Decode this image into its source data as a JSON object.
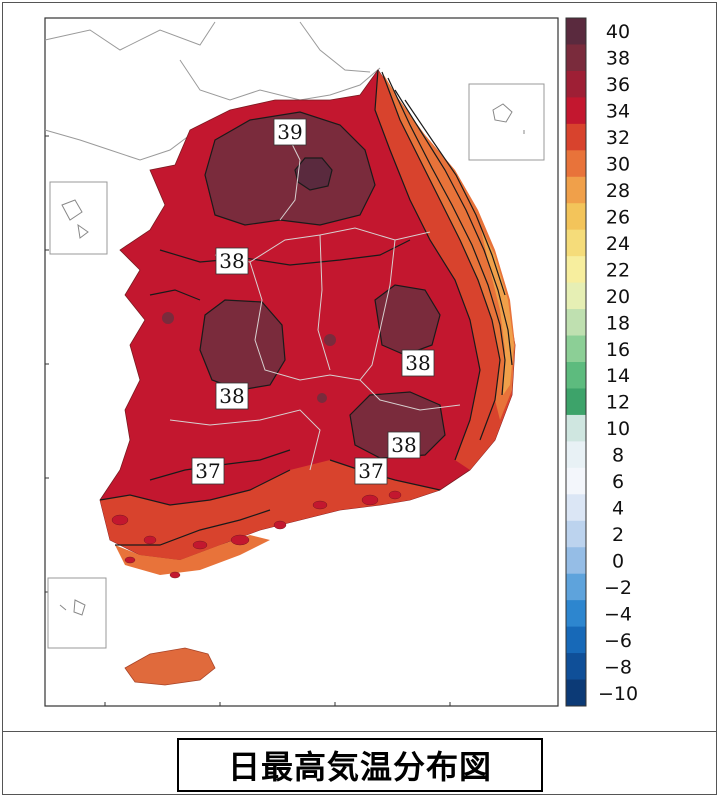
{
  "caption": "日最高気温分布図",
  "colorbar": {
    "labels": [
      "40",
      "38",
      "36",
      "34",
      "32",
      "30",
      "28",
      "26",
      "24",
      "22",
      "20",
      "18",
      "16",
      "14",
      "12",
      "10",
      "8",
      "6",
      "4",
      "2",
      "0",
      "−2",
      "−4",
      "−6",
      "−8",
      "−10"
    ],
    "colors": [
      "#5a2a3e",
      "#7a2b3c",
      "#9e1f35",
      "#c3172f",
      "#d8432d",
      "#e8733a",
      "#f0a04a",
      "#f3c45a",
      "#f5dc7a",
      "#f7ee9e",
      "#e6efb4",
      "#bfe0b0",
      "#8ccf96",
      "#5dbb7e",
      "#3da36a",
      "#cfe6e0",
      "#e8f1f5",
      "#f3f6fb",
      "#dbe6f5",
      "#bcd3ee",
      "#95bde6",
      "#5ea3dc",
      "#2d86cf",
      "#1769b8",
      "#0f4f98",
      "#0c3a76"
    ]
  },
  "contour_labels": [
    {
      "id": "l39",
      "text": "39"
    },
    {
      "id": "l38a",
      "text": "38"
    },
    {
      "id": "l38b",
      "text": "38"
    },
    {
      "id": "l38c",
      "text": "38"
    },
    {
      "id": "l38d",
      "text": "38"
    },
    {
      "id": "l37a",
      "text": "37"
    },
    {
      "id": "l37b",
      "text": "37"
    }
  ],
  "colors": {
    "sea": "#ffffff",
    "temp_36": "#c3172f",
    "temp_38": "#7a2b3c",
    "temp_34": "#d8432d",
    "temp_32": "#e8733a",
    "temp_30": "#f0a04a",
    "jeju": "#e06a3c"
  }
}
